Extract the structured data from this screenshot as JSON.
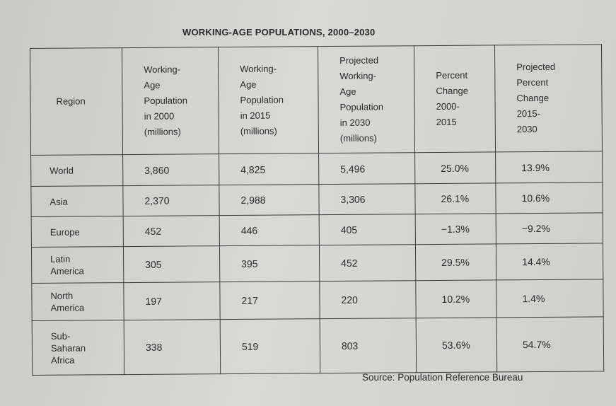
{
  "title": "WORKING-AGE POPULATIONS, 2000–2030",
  "columns": [
    "Region",
    "Working-\nAge\nPopulation\nin 2000\n(millions)",
    "Working-\nAge\nPopulation\nin 2015\n(millions)",
    "Projected\nWorking-\nAge\nPopulation\nin 2030\n(millions)",
    "Percent\nChange\n2000-\n2015",
    "Projected\nPercent\nChange\n2015-\n2030"
  ],
  "rows": [
    [
      "World",
      "3,860",
      "4,825",
      "5,496",
      "25.0%",
      "13.9%"
    ],
    [
      "Asia",
      "2,370",
      "2,988",
      "3,306",
      "26.1%",
      "10.6%"
    ],
    [
      "Europe",
      "452",
      "446",
      "405",
      "−1.3%",
      "−9.2%"
    ],
    [
      "Latin\nAmerica",
      "305",
      "395",
      "452",
      "29.5%",
      "14.4%"
    ],
    [
      "North\nAmerica",
      "197",
      "217",
      "220",
      "10.2%",
      "1.4%"
    ],
    [
      "Sub-\nSaharan\nAfrica",
      "338",
      "519",
      "803",
      "53.6%",
      "54.7%"
    ]
  ],
  "source": "Source: Population Reference Bureau"
}
